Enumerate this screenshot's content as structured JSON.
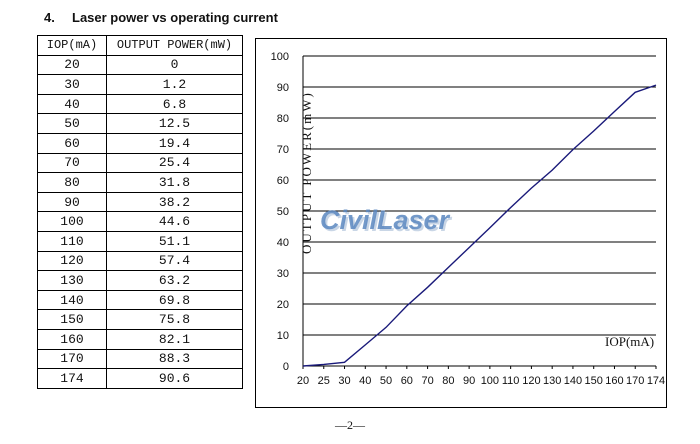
{
  "heading": {
    "number": "4.",
    "title": "Laser power vs operating current"
  },
  "table": {
    "headers": [
      "IOP(mA)",
      "OUTPUT POWER(mW)"
    ],
    "rows": [
      [
        "20",
        "0"
      ],
      [
        "30",
        "1.2"
      ],
      [
        "40",
        "6.8"
      ],
      [
        "50",
        "12.5"
      ],
      [
        "60",
        "19.4"
      ],
      [
        "70",
        "25.4"
      ],
      [
        "80",
        "31.8"
      ],
      [
        "90",
        "38.2"
      ],
      [
        "100",
        "44.6"
      ],
      [
        "110",
        "51.1"
      ],
      [
        "120",
        "57.4"
      ],
      [
        "130",
        "63.2"
      ],
      [
        "140",
        "69.8"
      ],
      [
        "150",
        "75.8"
      ],
      [
        "160",
        "82.1"
      ],
      [
        "170",
        "88.3"
      ],
      [
        "174",
        "90.6"
      ]
    ]
  },
  "chart_data": {
    "type": "line",
    "xlabel": "IOP(mA)",
    "ylabel": "OUTPUT POWER(mW)",
    "x_ticks": [
      "20",
      "25",
      "30",
      "40",
      "50",
      "60",
      "70",
      "80",
      "90",
      "100",
      "110",
      "120",
      "130",
      "140",
      "150",
      "160",
      "170",
      "174"
    ],
    "y_ticks": [
      "0",
      "10",
      "20",
      "30",
      "40",
      "50",
      "60",
      "70",
      "80",
      "90",
      "100"
    ],
    "ylim": [
      0,
      100
    ],
    "grid": "horizontal",
    "line_color": "#1a1a7a",
    "series": [
      {
        "x": [
          20,
          25,
          30,
          40,
          50,
          60,
          70,
          80,
          90,
          100,
          110,
          120,
          130,
          140,
          150,
          160,
          170,
          174
        ],
        "y": [
          0,
          0.5,
          1.2,
          6.8,
          12.5,
          19.4,
          25.4,
          31.8,
          38.2,
          44.6,
          51.1,
          57.4,
          63.2,
          69.8,
          75.8,
          82.1,
          88.3,
          90.6
        ]
      }
    ]
  },
  "watermark": "CivilLaser",
  "footer": "—2—"
}
